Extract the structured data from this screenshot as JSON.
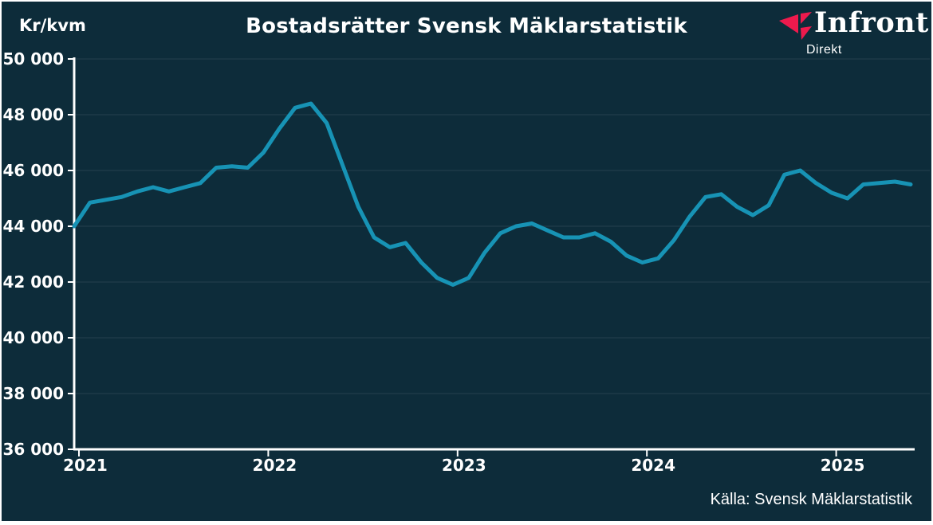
{
  "title": "Bostadsrätter Svensk Mäklarstatistik",
  "unit_label": "Kr/kvm",
  "source_caption": "Källa: Svensk Mäklarstatistik",
  "logo": {
    "wordmark": "Infront",
    "subtitle": "Direkt"
  },
  "colors": {
    "frame": "#FFFFFF",
    "card_background": "#0D2C3A",
    "text": "#FFFFFF",
    "line": "#1793B5",
    "gridline": "rgba(255,255,255,0.05)",
    "axis": "#FFFFFF",
    "logo_red": "#ED1A4D"
  },
  "chart_data": {
    "type": "line",
    "title": "Bostadsrätter Svensk Mäklarstatistik",
    "ylabel": "Kr/kvm",
    "xlabel": "",
    "ylim": [
      36000,
      50000
    ],
    "y_ticks": [
      50000,
      48000,
      46000,
      44000,
      42000,
      40000,
      38000,
      36000
    ],
    "y_tick_labels": [
      "50 000",
      "48 000",
      "46 000",
      "44 000",
      "42 000",
      "40 000",
      "38 000",
      "36 000"
    ],
    "x_tick_labels": [
      "2021",
      "2022",
      "2023",
      "2024",
      "2025"
    ],
    "grid": "faint horizontal gridlines at each y tick",
    "legend_position": "none",
    "series": [
      {
        "name": "Bostadsrätter kr/kvm",
        "frequency": "monthly",
        "start": "2020-12",
        "end": "2025-05",
        "values": [
          44000,
          44850,
          44950,
          45050,
          45250,
          45400,
          45250,
          45400,
          45550,
          46100,
          46150,
          46100,
          46650,
          47500,
          48250,
          48400,
          47700,
          46200,
          44700,
          43600,
          43250,
          43400,
          42700,
          42150,
          41900,
          42150,
          43050,
          43750,
          44000,
          44100,
          43850,
          43600,
          43600,
          43750,
          43450,
          42950,
          42700,
          42850,
          43500,
          44350,
          45050,
          45150,
          44700,
          44400,
          44750,
          45850,
          46000,
          45550,
          45200,
          45000,
          45500,
          45550,
          45600,
          45500
        ]
      }
    ]
  }
}
